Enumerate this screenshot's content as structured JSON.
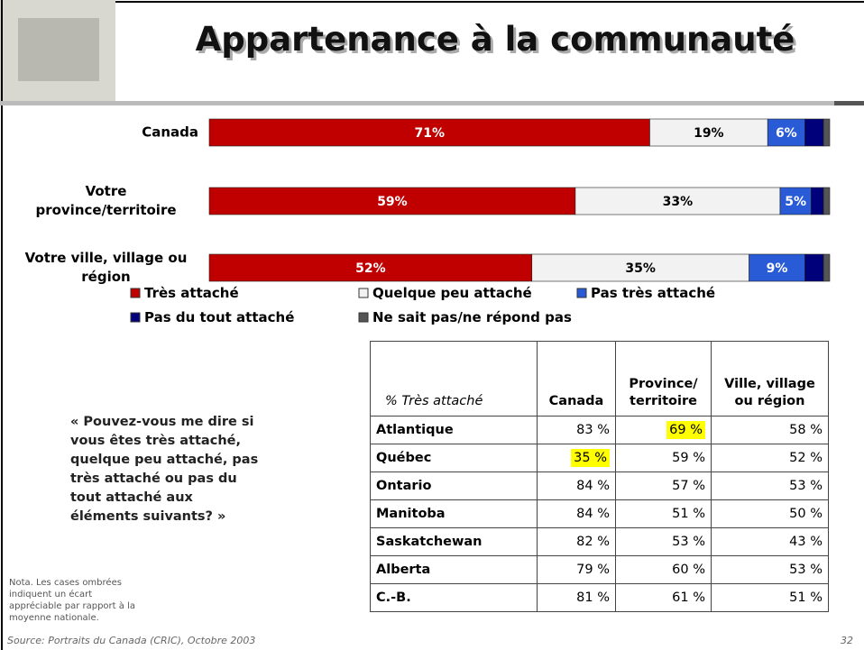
{
  "header": {
    "title": "Appartenance à la communauté"
  },
  "chart_data": {
    "type": "bar",
    "orientation": "horizontal",
    "stacked": true,
    "categories": [
      "Canada",
      "Votre province/territoire",
      "Votre ville, village ou région"
    ],
    "series": [
      {
        "name": "Très attaché",
        "color": "#c00000",
        "values": [
          71,
          59,
          52
        ],
        "value_labels": [
          "71%",
          "59%",
          "52%"
        ]
      },
      {
        "name": "Quelque peu attaché",
        "color": "#f2f2f2",
        "values": [
          19,
          33,
          35
        ],
        "value_labels": [
          "19%",
          "33%",
          "35%"
        ]
      },
      {
        "name": "Pas très attaché",
        "color": "#2a5bd7",
        "values": [
          6,
          5,
          9
        ],
        "value_labels": [
          "6%",
          "5%",
          "9%"
        ]
      },
      {
        "name": "Pas du tout attaché",
        "color": "#00007a",
        "values": [
          3,
          2,
          3
        ]
      },
      {
        "name": "Ne sait pas/ne répond pas",
        "color": "#555555",
        "values": [
          1,
          1,
          1
        ]
      }
    ]
  },
  "question": "« Pouvez-vous me dire si vous êtes très attaché, quelque peu attaché, pas très attaché ou pas du tout attaché aux éléments suivants? »",
  "table": {
    "header": [
      "% Très attaché",
      "Canada",
      "Province/ territoire",
      "Ville, village ou région"
    ],
    "rows": [
      [
        "Atlantique",
        "83 %",
        {
          "text": "69 %",
          "fill": "#ffff00"
        },
        "58 %"
      ],
      [
        "Québec",
        {
          "text": "35 %",
          "fill": "#ffff00"
        },
        "59 %",
        "52 %"
      ],
      [
        "Ontario",
        "84 %",
        "57 %",
        "53 %"
      ],
      [
        "Manitoba",
        "84 %",
        "51 %",
        "50 %"
      ],
      [
        "Saskatchewan",
        "82 %",
        "53 %",
        "43 %"
      ],
      [
        "Alberta",
        "79 %",
        "60 %",
        "53 %"
      ],
      [
        "C.-B.",
        "81 %",
        "61 %",
        "51 %"
      ]
    ]
  },
  "note": "Nota. Les cases ombrées indiquent un écart appréciable par rapport à la moyenne nationale.",
  "footer": {
    "source": "Source: Portraits du Canada (CRIC), Octobre 2003",
    "page": "32"
  }
}
